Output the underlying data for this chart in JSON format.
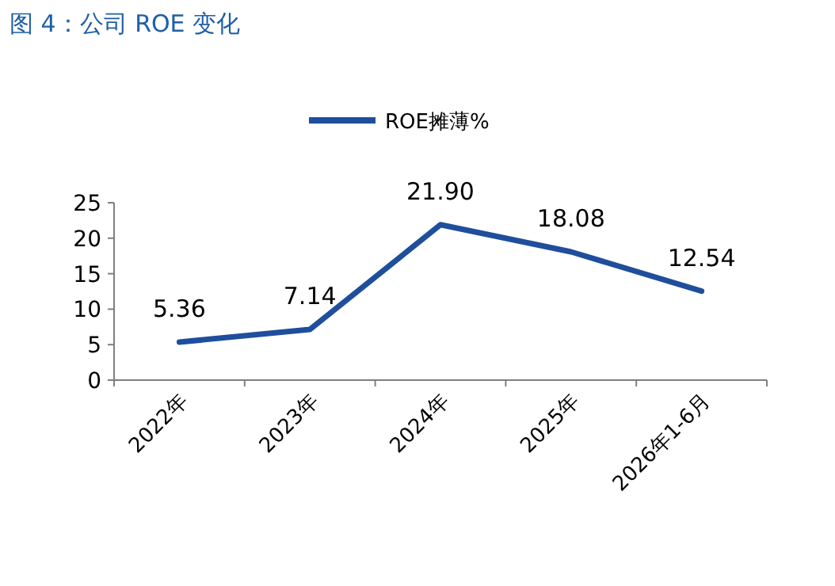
{
  "chart_data": {
    "type": "line",
    "title": "图 4：公司 ROE 变化",
    "categories": [
      "2022年",
      "2023年",
      "2024年",
      "2025年",
      "2026年1-6月"
    ],
    "series": [
      {
        "name": "ROE摊薄%",
        "color": "#1f4e9c",
        "values": [
          5.36,
          7.14,
          21.9,
          18.08,
          12.54
        ],
        "value_labels": [
          "5.36",
          "7.14",
          "21.90",
          "18.08",
          "12.54"
        ]
      }
    ],
    "ylim": [
      0,
      25
    ],
    "yticks": [
      0,
      5,
      10,
      15,
      20,
      25
    ],
    "legend": "top",
    "grid": false,
    "marker": "none",
    "line_style": "solid"
  }
}
